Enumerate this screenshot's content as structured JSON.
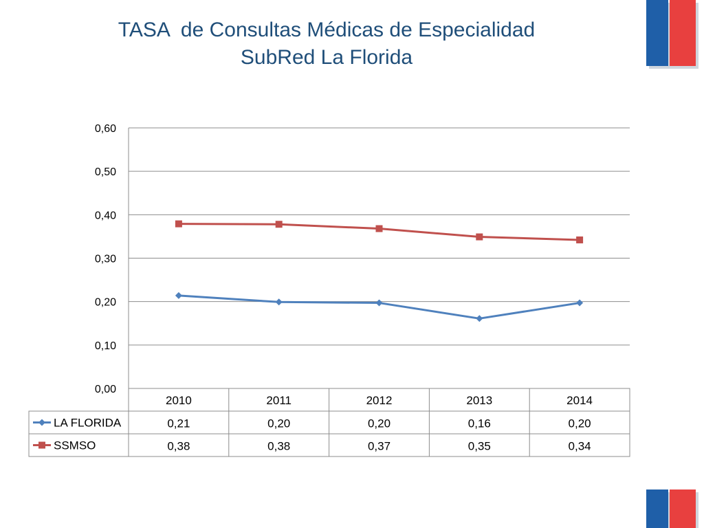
{
  "title": {
    "line1": "TASA  de Consultas Médicas de Especialidad",
    "line2": "SubRed La Florida"
  },
  "colors": {
    "title": "#1f4e79",
    "series_la_florida": "#4f81bd",
    "series_ssmso": "#c0504d",
    "flag_blue": "#1f5fa8",
    "flag_red": "#e8403f"
  },
  "chart_data": {
    "type": "line",
    "title": "TASA  de Consultas Médicas de Especialidad SubRed La Florida",
    "categories": [
      "2010",
      "2011",
      "2012",
      "2013",
      "2014"
    ],
    "series": [
      {
        "name": "LA FLORIDA",
        "marker": "diamond",
        "color": "#4f81bd",
        "values": [
          0.214,
          0.199,
          0.197,
          0.161,
          0.197
        ],
        "labels": [
          "0,21",
          "0,20",
          "0,20",
          "0,16",
          "0,20"
        ]
      },
      {
        "name": "SSMSO",
        "marker": "square",
        "color": "#c0504d",
        "values": [
          0.379,
          0.378,
          0.368,
          0.349,
          0.342
        ],
        "labels": [
          "0,38",
          "0,38",
          "0,37",
          "0,35",
          "0,34"
        ]
      }
    ],
    "ylim": [
      0,
      0.6
    ],
    "yticks": [
      0,
      0.1,
      0.2,
      0.3,
      0.4,
      0.5,
      0.6
    ],
    "ytick_labels": [
      "0,00",
      "0,10",
      "0,20",
      "0,30",
      "0,40",
      "0,50",
      "0,60"
    ],
    "grid": true,
    "legend": "data-table"
  }
}
